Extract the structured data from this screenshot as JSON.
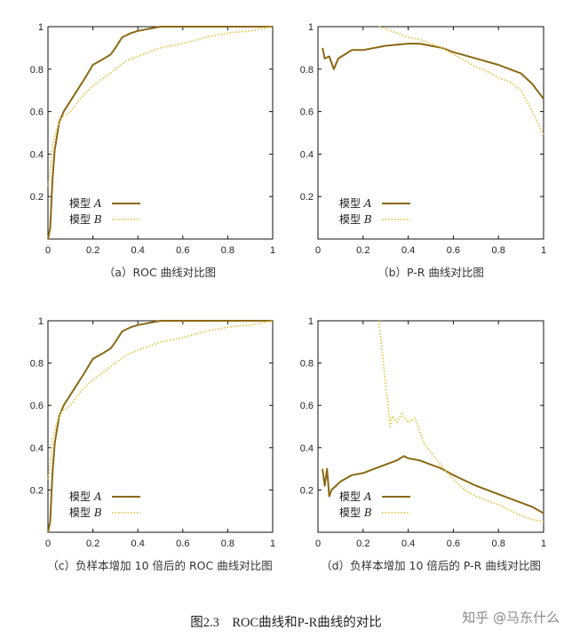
{
  "colors": {
    "model_a": "#8b6914",
    "model_b": "#e0c64a",
    "axis": "#111111"
  },
  "figure_caption": "图2.3　ROC曲线和P-R曲线的对比",
  "watermark": "知乎 @马东什么",
  "chart_data": [
    {
      "id": "a",
      "type": "line",
      "caption": "（a）ROC 曲线对比图",
      "xlim": [
        0,
        1
      ],
      "ylim": [
        0,
        1
      ],
      "xticks": [
        "0",
        "0.2",
        "0.4",
        "0.6",
        "0.8",
        "1"
      ],
      "yticks": [
        "0.2",
        "0.4",
        "0.6",
        "0.8",
        "1"
      ],
      "legend": {
        "position": "bottom-left",
        "labels": [
          "模型",
          "模型"
        ],
        "italic": [
          "A",
          "B"
        ]
      },
      "series": [
        {
          "name": "模型 A",
          "style": "solid",
          "x": [
            0,
            0.01,
            0.02,
            0.03,
            0.05,
            0.07,
            0.1,
            0.13,
            0.16,
            0.2,
            0.25,
            0.28,
            0.3,
            0.33,
            0.37,
            0.4,
            0.45,
            0.5,
            0.6,
            0.7,
            0.8,
            1.0
          ],
          "y": [
            0,
            0.05,
            0.28,
            0.42,
            0.55,
            0.6,
            0.65,
            0.7,
            0.75,
            0.82,
            0.85,
            0.87,
            0.9,
            0.95,
            0.97,
            0.98,
            0.99,
            1.0,
            1.0,
            1.0,
            1.0,
            1.0
          ]
        },
        {
          "name": "模型 B",
          "style": "dotted",
          "x": [
            0,
            0.01,
            0.02,
            0.04,
            0.06,
            0.1,
            0.15,
            0.2,
            0.25,
            0.3,
            0.35,
            0.4,
            0.45,
            0.5,
            0.6,
            0.7,
            0.8,
            0.9,
            0.95,
            1.0
          ],
          "y": [
            0.25,
            0.32,
            0.44,
            0.52,
            0.57,
            0.6,
            0.67,
            0.72,
            0.76,
            0.8,
            0.84,
            0.86,
            0.88,
            0.9,
            0.92,
            0.95,
            0.97,
            0.98,
            0.99,
            1.0
          ]
        }
      ]
    },
    {
      "id": "b",
      "type": "line",
      "caption": "（b）P-R 曲线对比图",
      "xlim": [
        0,
        1
      ],
      "ylim": [
        0,
        1
      ],
      "xticks": [
        "0",
        "0.2",
        "0.4",
        "0.6",
        "0.8",
        "1"
      ],
      "yticks": [
        "0.2",
        "0.4",
        "0.6",
        "0.8",
        "1"
      ],
      "legend": {
        "position": "bottom-left",
        "labels": [
          "模型",
          "模型"
        ],
        "italic": [
          "A",
          "B"
        ]
      },
      "series": [
        {
          "name": "模型 A",
          "style": "solid",
          "x": [
            0.02,
            0.03,
            0.05,
            0.07,
            0.09,
            0.12,
            0.15,
            0.2,
            0.3,
            0.4,
            0.45,
            0.5,
            0.55,
            0.6,
            0.7,
            0.8,
            0.85,
            0.9,
            0.95,
            1.0
          ],
          "y": [
            0.9,
            0.85,
            0.86,
            0.8,
            0.85,
            0.87,
            0.89,
            0.89,
            0.91,
            0.92,
            0.92,
            0.91,
            0.9,
            0.88,
            0.85,
            0.82,
            0.8,
            0.78,
            0.73,
            0.66
          ]
        },
        {
          "name": "模型 B",
          "style": "dotted",
          "x": [
            0.27,
            0.3,
            0.35,
            0.4,
            0.45,
            0.5,
            0.55,
            0.6,
            0.65,
            0.7,
            0.75,
            0.8,
            0.85,
            0.9,
            0.95,
            1.0
          ],
          "y": [
            1.0,
            0.99,
            0.97,
            0.95,
            0.94,
            0.92,
            0.9,
            0.87,
            0.84,
            0.81,
            0.79,
            0.76,
            0.74,
            0.7,
            0.6,
            0.49
          ]
        }
      ]
    },
    {
      "id": "c",
      "type": "line",
      "caption": "（c）负样本增加 10 倍后的 ROC 曲线对比图",
      "xlim": [
        0,
        1
      ],
      "ylim": [
        0,
        1
      ],
      "xticks": [
        "0",
        "0.2",
        "0.4",
        "0.6",
        "0.8",
        "1"
      ],
      "yticks": [
        "0.2",
        "0.4",
        "0.6",
        "0.8",
        "1"
      ],
      "legend": {
        "position": "bottom-left",
        "labels": [
          "模型",
          "模型"
        ],
        "italic": [
          "A",
          "B"
        ]
      },
      "series": [
        {
          "name": "模型 A",
          "style": "solid",
          "x": [
            0,
            0.01,
            0.02,
            0.03,
            0.05,
            0.07,
            0.1,
            0.13,
            0.16,
            0.2,
            0.25,
            0.28,
            0.3,
            0.33,
            0.37,
            0.4,
            0.45,
            0.5,
            0.6,
            0.7,
            0.8,
            1.0
          ],
          "y": [
            0,
            0.05,
            0.28,
            0.42,
            0.55,
            0.6,
            0.65,
            0.7,
            0.75,
            0.82,
            0.85,
            0.87,
            0.9,
            0.95,
            0.97,
            0.98,
            0.99,
            1.0,
            1.0,
            1.0,
            1.0,
            1.0
          ]
        },
        {
          "name": "模型 B",
          "style": "dotted",
          "x": [
            0,
            0.01,
            0.02,
            0.04,
            0.06,
            0.1,
            0.15,
            0.2,
            0.25,
            0.3,
            0.35,
            0.4,
            0.45,
            0.5,
            0.6,
            0.7,
            0.8,
            0.9,
            0.95,
            1.0
          ],
          "y": [
            0.25,
            0.32,
            0.44,
            0.52,
            0.57,
            0.6,
            0.67,
            0.72,
            0.76,
            0.8,
            0.84,
            0.86,
            0.88,
            0.9,
            0.92,
            0.95,
            0.97,
            0.98,
            0.99,
            1.0
          ]
        }
      ]
    },
    {
      "id": "d",
      "type": "line",
      "caption": "（d）负样本增加 10 倍后的 P-R 曲线对比图",
      "xlim": [
        0,
        1
      ],
      "ylim": [
        0,
        1
      ],
      "xticks": [
        "0",
        "0.2",
        "0.4",
        "0.6",
        "0.8",
        "1"
      ],
      "yticks": [
        "0.2",
        "0.4",
        "0.6",
        "0.8",
        "1"
      ],
      "legend": {
        "position": "bottom-left",
        "labels": [
          "模型",
          "模型"
        ],
        "italic": [
          "A",
          "B"
        ]
      },
      "series": [
        {
          "name": "模型 A",
          "style": "solid",
          "x": [
            0.02,
            0.03,
            0.04,
            0.05,
            0.06,
            0.08,
            0.1,
            0.15,
            0.2,
            0.25,
            0.3,
            0.35,
            0.38,
            0.4,
            0.45,
            0.5,
            0.55,
            0.6,
            0.7,
            0.8,
            0.9,
            0.95,
            1.0
          ],
          "y": [
            0.3,
            0.22,
            0.3,
            0.17,
            0.2,
            0.22,
            0.24,
            0.27,
            0.28,
            0.3,
            0.32,
            0.34,
            0.36,
            0.35,
            0.34,
            0.32,
            0.3,
            0.27,
            0.22,
            0.18,
            0.14,
            0.12,
            0.09
          ]
        },
        {
          "name": "模型 B",
          "style": "dotted",
          "x": [
            0.27,
            0.28,
            0.29,
            0.3,
            0.31,
            0.32,
            0.33,
            0.35,
            0.37,
            0.4,
            0.43,
            0.45,
            0.47,
            0.5,
            0.55,
            0.6,
            0.65,
            0.7,
            0.8,
            0.9,
            0.95,
            1.0
          ],
          "y": [
            1.0,
            0.9,
            0.8,
            0.7,
            0.6,
            0.5,
            0.55,
            0.52,
            0.56,
            0.52,
            0.54,
            0.48,
            0.42,
            0.38,
            0.31,
            0.25,
            0.2,
            0.17,
            0.13,
            0.08,
            0.06,
            0.05
          ]
        }
      ]
    }
  ]
}
